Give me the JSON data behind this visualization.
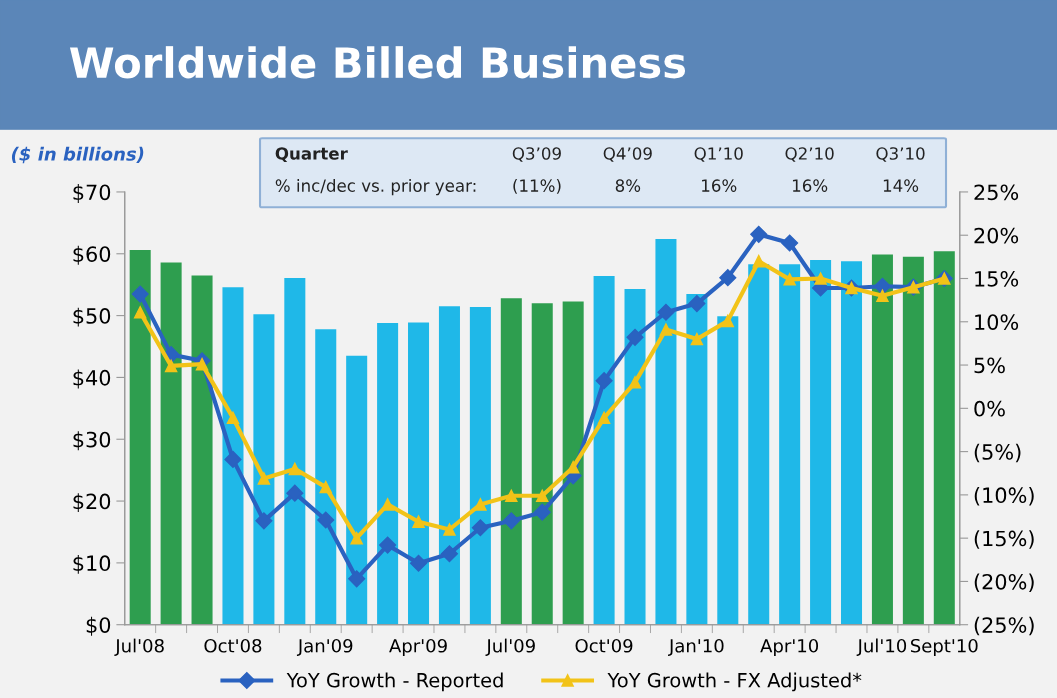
{
  "chart_data": {
    "type": "bar",
    "title": "Worldwide Billed Business",
    "ylabel": "($ in billions)",
    "categories": [
      "Jul'08",
      null,
      null,
      "Oct'08",
      null,
      null,
      "Jan'09",
      null,
      null,
      "Apr'09",
      null,
      null,
      "Jul'09",
      null,
      null,
      "Oct'09",
      null,
      null,
      "Jan'10",
      null,
      null,
      "Apr'10",
      null,
      null,
      "Jul'10",
      null,
      "Sept'10"
    ],
    "series": [
      {
        "colors": [
          "#2e9e4f",
          "#2e9e4f",
          "#2e9e4f",
          "#1fb8e8",
          "#1fb8e8",
          "#1fb8e8",
          "#1fb8e8",
          "#1fb8e8",
          "#1fb8e8",
          "#1fb8e8",
          "#1fb8e8",
          "#1fb8e8",
          "#2e9e4f",
          "#2e9e4f",
          "#2e9e4f",
          "#1fb8e8",
          "#1fb8e8",
          "#1fb8e8",
          "#1fb8e8",
          "#1fb8e8",
          "#1fb8e8",
          "#1fb8e8",
          "#1fb8e8",
          "#1fb8e8",
          "#2e9e4f",
          "#2e9e4f",
          "#2e9e4f"
        ],
        "values": [
          60.6,
          58.6,
          56.5,
          54.6,
          50.2,
          56.1,
          47.8,
          43.5,
          48.8,
          48.9,
          51.5,
          51.4,
          52.8,
          52.0,
          52.3,
          56.4,
          54.3,
          62.4,
          53.5,
          49.9,
          58.3,
          58.3,
          59.0,
          58.8,
          59.9,
          59.5,
          60.4
        ]
      },
      {
        "type": "line",
        "axis": "y2",
        "name": "YoY Growth - Reported",
        "color": "#2a62c0",
        "marker": "diamond",
        "values": [
          13.2,
          6.2,
          5.5,
          -5.9,
          -13.0,
          -9.8,
          -12.9,
          -19.7,
          -15.8,
          -17.9,
          -16.8,
          -13.8,
          -13.0,
          -12.0,
          -7.8,
          3.2,
          8.2,
          11.1,
          12.1,
          15.1,
          20.1,
          19.1,
          13.9,
          13.9,
          14.1,
          14.0,
          15.0
        ]
      },
      {
        "type": "line",
        "axis": "y2",
        "name": "YoY Growth - FX Adjusted*",
        "color": "#f2c318",
        "marker": "triangle",
        "values": [
          11.1,
          4.9,
          5.1,
          -1.1,
          -8.1,
          -7.0,
          -9.1,
          -15.0,
          -11.1,
          -13.1,
          -14.0,
          -11.1,
          -10.1,
          -10.1,
          -6.8,
          -1.1,
          3.0,
          9.1,
          8.0,
          10.1,
          17.0,
          14.9,
          15.0,
          13.9,
          13.0,
          14.0,
          15.0
        ]
      }
    ],
    "ylim": [
      0,
      70
    ],
    "yticks": [
      {
        "value": 0,
        "label": "$0"
      },
      {
        "value": 10,
        "label": "$10"
      },
      {
        "value": 20,
        "label": "$20"
      },
      {
        "value": 30,
        "label": "$30"
      },
      {
        "value": 40,
        "label": "$40"
      },
      {
        "value": 50,
        "label": "$50"
      },
      {
        "value": 60,
        "label": "$60"
      },
      {
        "value": 70,
        "label": "$70"
      }
    ],
    "y2lim": [
      -25,
      25
    ],
    "y2ticks": [
      {
        "value": -25,
        "label": "(25%)"
      },
      {
        "value": -20,
        "label": "(20%)"
      },
      {
        "value": -15,
        "label": "(15%)"
      },
      {
        "value": -10,
        "label": "(10%)"
      },
      {
        "value": -5,
        "label": "(5%)"
      },
      {
        "value": 0,
        "label": "0%"
      },
      {
        "value": 5,
        "label": "5%"
      },
      {
        "value": 10,
        "label": "10%"
      },
      {
        "value": 15,
        "label": "15%"
      },
      {
        "value": 20,
        "label": "20%"
      },
      {
        "value": 25,
        "label": "25%"
      }
    ],
    "legend": "bottom",
    "annotations": [
      "Quarter",
      "Q3’09",
      "Q4’09",
      "Q1’10",
      "Q2’10",
      "Q3’10",
      "% inc/dec vs. prior year:",
      "(11%)",
      "8%",
      "16%",
      "16%",
      "14%"
    ]
  }
}
